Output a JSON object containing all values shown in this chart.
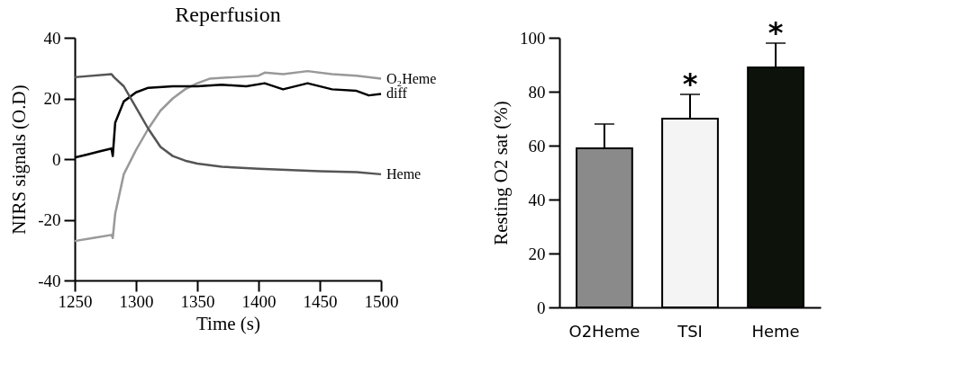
{
  "chart_data": [
    {
      "type": "line",
      "title": "Reperfusion",
      "xlabel": "Time (s)",
      "ylabel": "NIRS signals (O.D)",
      "xlim": [
        1250,
        1500
      ],
      "xticks": [
        1250,
        1300,
        1350,
        1400,
        1450,
        1500
      ],
      "ylim": [
        -40,
        40
      ],
      "yticks": [
        -40,
        -20,
        0,
        20,
        40
      ],
      "grid": false,
      "series": [
        {
          "name": "O₂Heme",
          "color": "#999999",
          "x": [
            1250,
            1265,
            1280,
            1281,
            1283,
            1290,
            1300,
            1310,
            1320,
            1330,
            1340,
            1350,
            1360,
            1380,
            1400,
            1405,
            1420,
            1440,
            1460,
            1480,
            1500
          ],
          "values": [
            -27,
            -26,
            -25,
            -26,
            -18,
            -5,
            3,
            10,
            16,
            20,
            23,
            25,
            26.5,
            27,
            27.5,
            28.5,
            28,
            29,
            28,
            27.5,
            26.5
          ]
        },
        {
          "name": "diff",
          "color": "#000000",
          "x": [
            1250,
            1260,
            1270,
            1280,
            1281,
            1283,
            1290,
            1300,
            1310,
            1330,
            1350,
            1370,
            1390,
            1405,
            1420,
            1440,
            1460,
            1480,
            1490,
            1500
          ],
          "values": [
            0.5,
            1.5,
            2.5,
            3.5,
            1,
            12,
            19,
            22,
            23.5,
            24,
            24,
            24.5,
            24,
            25,
            23,
            25,
            23,
            22.5,
            21,
            21.5
          ]
        },
        {
          "name": "Heme",
          "color": "#555555",
          "x": [
            1250,
            1280,
            1282,
            1290,
            1300,
            1310,
            1320,
            1330,
            1340,
            1350,
            1370,
            1400,
            1450,
            1480,
            1500
          ],
          "values": [
            27,
            28,
            27,
            24,
            17,
            10,
            4,
            1,
            -0.5,
            -1.5,
            -2.5,
            -3.2,
            -4,
            -4.3,
            -5
          ]
        }
      ]
    },
    {
      "type": "bar",
      "ylabel": "Resting O2 sat (%)",
      "categories": [
        "O2Heme",
        "TSI",
        "Heme"
      ],
      "values": [
        59,
        70,
        89
      ],
      "colors": [
        "#8a8a8a",
        "#f4f4f4",
        "#0d130b"
      ],
      "errors": [
        [
          59,
          68
        ],
        [
          70,
          79
        ],
        [
          89,
          98
        ]
      ],
      "ylim": [
        0,
        100
      ],
      "yticks": [
        0,
        20,
        40,
        60,
        80,
        100
      ],
      "grid": false,
      "annotations": [
        {
          "text": "*",
          "x": "TSI",
          "y": 79
        },
        {
          "text": "*",
          "x": "Heme",
          "y": 98
        }
      ]
    }
  ]
}
